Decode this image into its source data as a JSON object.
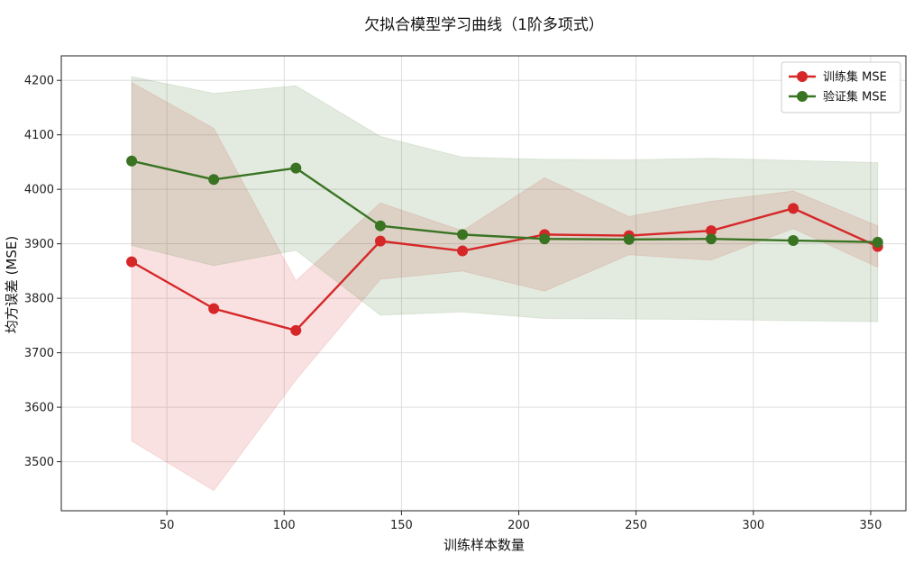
{
  "chart_data": {
    "type": "line",
    "title": "欠拟合模型学习曲线（1阶多项式）",
    "xlabel": "训练样本数量",
    "ylabel": "均方误差 (MSE)",
    "xlim": [
      5,
      365
    ],
    "ylim": [
      3410,
      4245
    ],
    "xticks": [
      50,
      100,
      150,
      200,
      250,
      300,
      350
    ],
    "yticks": [
      3500,
      3600,
      3700,
      3800,
      3900,
      4000,
      4100,
      4200
    ],
    "grid": true,
    "legend_position": "top-right",
    "x": [
      35,
      70,
      105,
      141,
      176,
      211,
      247,
      282,
      317,
      353
    ],
    "series": [
      {
        "name": "训练集 MSE",
        "color": "#d62728",
        "values": [
          3867,
          3781,
          3741,
          3905,
          3887,
          3917,
          3915,
          3924,
          3965,
          3895
        ],
        "band_lower": [
          3538,
          3447,
          3650,
          3835,
          3850,
          3813,
          3880,
          3870,
          3928,
          3857
        ],
        "band_upper": [
          4196,
          4112,
          3832,
          3975,
          3924,
          4021,
          3950,
          3978,
          3997,
          3933
        ]
      },
      {
        "name": "验证集 MSE",
        "color": "#3a7423",
        "values": [
          4052,
          4018,
          4039,
          3933,
          3917,
          3909,
          3908,
          3909,
          3906,
          3903
        ],
        "band_lower": [
          3897,
          3860,
          3888,
          3769,
          3775,
          3763,
          3762,
          3761,
          3759,
          3757
        ],
        "band_upper": [
          4207,
          4176,
          4190,
          4097,
          4059,
          4055,
          4054,
          4057,
          4053,
          4049
        ]
      }
    ]
  }
}
